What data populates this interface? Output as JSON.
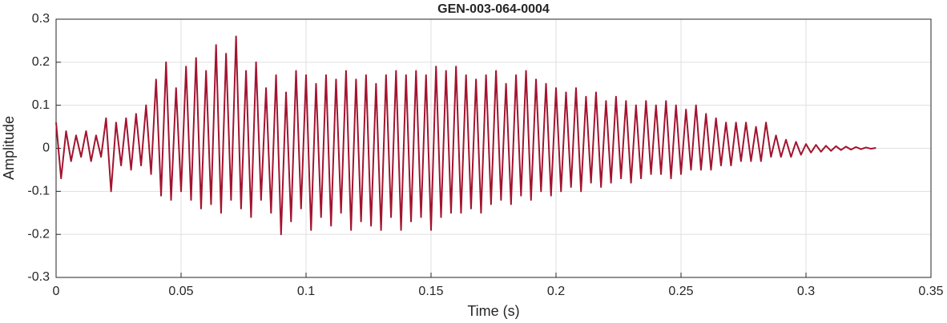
{
  "chart_data": {
    "type": "line",
    "title": "GEN-003-064-0004",
    "xlabel": "Time (s)",
    "ylabel": "Amplitude",
    "xlim": [
      0,
      0.35
    ],
    "xticks": [
      0,
      0.05,
      0.1,
      0.15,
      0.2,
      0.25,
      0.3,
      0.35
    ],
    "ylim": [
      -0.3,
      0.3
    ],
    "yticks": [
      -0.3,
      -0.2,
      -0.1,
      0,
      0.1,
      0.2,
      0.3
    ],
    "grid": true,
    "series": [
      {
        "color": "#a2142f",
        "x": [
          0,
          0.002,
          0.004,
          0.006,
          0.008,
          0.01,
          0.012,
          0.014,
          0.016,
          0.018,
          0.02,
          0.022,
          0.024,
          0.026,
          0.028,
          0.03,
          0.032,
          0.034,
          0.036,
          0.038,
          0.04,
          0.042,
          0.044,
          0.046,
          0.048,
          0.05,
          0.052,
          0.054,
          0.056,
          0.058,
          0.06,
          0.062,
          0.064,
          0.066,
          0.068,
          0.07,
          0.072,
          0.074,
          0.076,
          0.078,
          0.08,
          0.082,
          0.084,
          0.086,
          0.088,
          0.09,
          0.092,
          0.094,
          0.096,
          0.098,
          0.1,
          0.102,
          0.104,
          0.106,
          0.108,
          0.11,
          0.112,
          0.114,
          0.116,
          0.118,
          0.12,
          0.122,
          0.124,
          0.126,
          0.128,
          0.13,
          0.132,
          0.134,
          0.136,
          0.138,
          0.14,
          0.142,
          0.144,
          0.146,
          0.148,
          0.15,
          0.152,
          0.154,
          0.156,
          0.158,
          0.16,
          0.162,
          0.164,
          0.166,
          0.168,
          0.17,
          0.172,
          0.174,
          0.176,
          0.178,
          0.18,
          0.182,
          0.184,
          0.186,
          0.188,
          0.19,
          0.192,
          0.194,
          0.196,
          0.198,
          0.2,
          0.202,
          0.204,
          0.206,
          0.208,
          0.21,
          0.212,
          0.214,
          0.216,
          0.218,
          0.22,
          0.222,
          0.224,
          0.226,
          0.228,
          0.23,
          0.232,
          0.234,
          0.236,
          0.238,
          0.24,
          0.242,
          0.244,
          0.246,
          0.248,
          0.25,
          0.252,
          0.254,
          0.256,
          0.258,
          0.26,
          0.262,
          0.264,
          0.266,
          0.268,
          0.27,
          0.272,
          0.274,
          0.276,
          0.278,
          0.28,
          0.282,
          0.284,
          0.286,
          0.288,
          0.29,
          0.292,
          0.294,
          0.296,
          0.298,
          0.3,
          0.302,
          0.304,
          0.306,
          0.308,
          0.31,
          0.312,
          0.314,
          0.316,
          0.318,
          0.32,
          0.322,
          0.324,
          0.326,
          0.328
        ],
        "values": [
          0.06,
          -0.07,
          0.04,
          -0.03,
          0.03,
          -0.02,
          0.04,
          -0.03,
          0.03,
          -0.02,
          0.07,
          -0.1,
          0.06,
          -0.04,
          0.07,
          -0.05,
          0.08,
          -0.04,
          0.1,
          -0.06,
          0.16,
          -0.11,
          0.2,
          -0.12,
          0.14,
          -0.1,
          0.19,
          -0.12,
          0.21,
          -0.14,
          0.18,
          -0.13,
          0.24,
          -0.15,
          0.22,
          -0.12,
          0.26,
          -0.14,
          0.18,
          -0.16,
          0.2,
          -0.12,
          0.14,
          -0.15,
          0.17,
          -0.2,
          0.13,
          -0.17,
          0.18,
          -0.14,
          0.17,
          -0.19,
          0.15,
          -0.16,
          0.17,
          -0.18,
          0.16,
          -0.15,
          0.18,
          -0.19,
          0.16,
          -0.17,
          0.17,
          -0.18,
          0.15,
          -0.19,
          0.17,
          -0.16,
          0.18,
          -0.19,
          0.17,
          -0.17,
          0.18,
          -0.16,
          0.17,
          -0.19,
          0.19,
          -0.16,
          0.18,
          -0.15,
          0.19,
          -0.15,
          0.17,
          -0.14,
          0.16,
          -0.15,
          0.17,
          -0.13,
          0.18,
          -0.12,
          0.15,
          -0.13,
          0.17,
          -0.11,
          0.18,
          -0.12,
          0.16,
          -0.1,
          0.15,
          -0.11,
          0.14,
          -0.1,
          0.13,
          -0.09,
          0.14,
          -0.1,
          0.12,
          -0.08,
          0.13,
          -0.09,
          0.11,
          -0.08,
          0.12,
          -0.07,
          0.11,
          -0.08,
          0.1,
          -0.07,
          0.11,
          -0.06,
          0.1,
          -0.06,
          0.11,
          -0.07,
          0.1,
          -0.06,
          0.09,
          -0.05,
          0.1,
          -0.05,
          0.08,
          -0.05,
          0.07,
          -0.04,
          0.06,
          -0.04,
          0.06,
          -0.03,
          0.06,
          -0.03,
          0.05,
          -0.03,
          0.06,
          -0.02,
          0.03,
          -0.02,
          0.02,
          -0.02,
          0.015,
          -0.015,
          0.01,
          -0.01,
          0.008,
          -0.008,
          0.006,
          -0.006,
          0.005,
          -0.004,
          0.004,
          -0.003,
          0.003,
          -0.002,
          0.002,
          -0.001,
          0.001
        ]
      }
    ]
  }
}
